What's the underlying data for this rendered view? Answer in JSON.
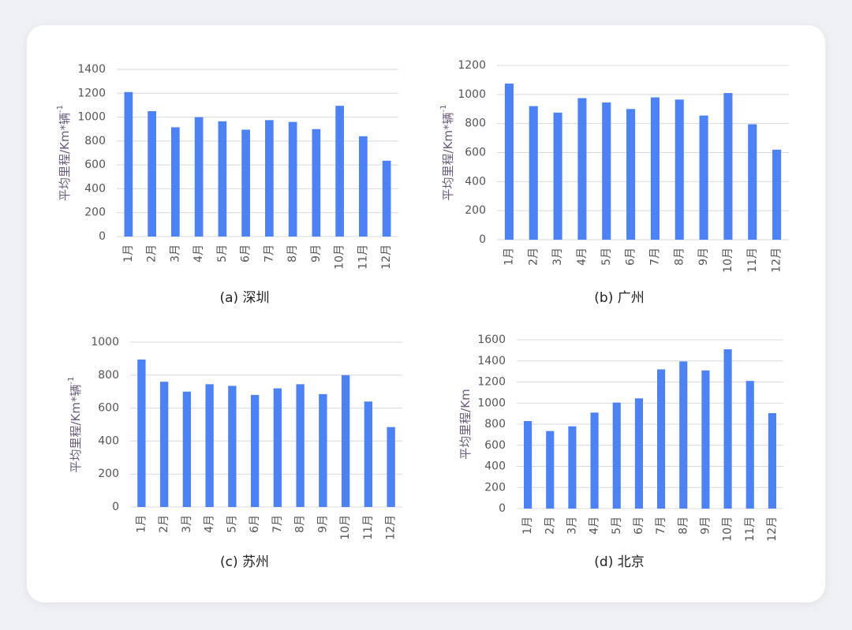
{
  "chart_data": [
    {
      "type": "bar",
      "caption": "(a)  深圳",
      "y_label": "平均里程/Km*辆",
      "y_label_sup": "-1",
      "categories": [
        "1月",
        "2月",
        "3月",
        "4月",
        "5月",
        "6月",
        "7月",
        "8月",
        "9月",
        "10月",
        "11月",
        "12月"
      ],
      "values": [
        1210,
        1050,
        915,
        1000,
        965,
        895,
        975,
        960,
        900,
        1095,
        840,
        635
      ],
      "color": "#4d82f5",
      "ylim": [
        0,
        1400
      ],
      "yticks": [
        0,
        200,
        400,
        600,
        800,
        1000,
        1200,
        1400
      ],
      "grid": true
    },
    {
      "type": "bar",
      "caption": "(b)  广州",
      "y_label": "平均里程/Km*辆",
      "y_label_sup": "-1",
      "categories": [
        "1月",
        "2月",
        "3月",
        "4月",
        "5月",
        "6月",
        "7月",
        "8月",
        "9月",
        "10月",
        "11月",
        "12月"
      ],
      "values": [
        1075,
        920,
        875,
        975,
        945,
        900,
        980,
        965,
        855,
        1010,
        795,
        620
      ],
      "color": "#4d82f5",
      "ylim": [
        0,
        1200
      ],
      "yticks": [
        0,
        200,
        400,
        600,
        800,
        1000,
        1200
      ],
      "grid": true
    },
    {
      "type": "bar",
      "caption": "(c)  苏州",
      "y_label": "平均里程/Km*辆",
      "y_label_sup": "-1",
      "categories": [
        "1月",
        "2月",
        "3月",
        "4月",
        "5月",
        "6月",
        "7月",
        "8月",
        "9月",
        "10月",
        "11月",
        "12月"
      ],
      "values": [
        895,
        760,
        700,
        745,
        735,
        680,
        720,
        745,
        685,
        800,
        640,
        485
      ],
      "color": "#4d82f5",
      "ylim": [
        0,
        1000
      ],
      "yticks": [
        0,
        200,
        400,
        600,
        800,
        1000
      ],
      "grid": true
    },
    {
      "type": "bar",
      "caption": "(d)  北京",
      "y_label": "平均里程/Km",
      "categories": [
        "1月",
        "2月",
        "3月",
        "4月",
        "5月",
        "6月",
        "7月",
        "8月",
        "9月",
        "10月",
        "11月",
        "12月"
      ],
      "values": [
        830,
        735,
        780,
        910,
        1005,
        1045,
        1320,
        1395,
        1310,
        1510,
        1210,
        905
      ],
      "color": "#4d82f5",
      "ylim": [
        0,
        1600
      ],
      "yticks": [
        0,
        200,
        400,
        600,
        800,
        1000,
        1200,
        1400,
        1600
      ],
      "grid": true
    }
  ]
}
